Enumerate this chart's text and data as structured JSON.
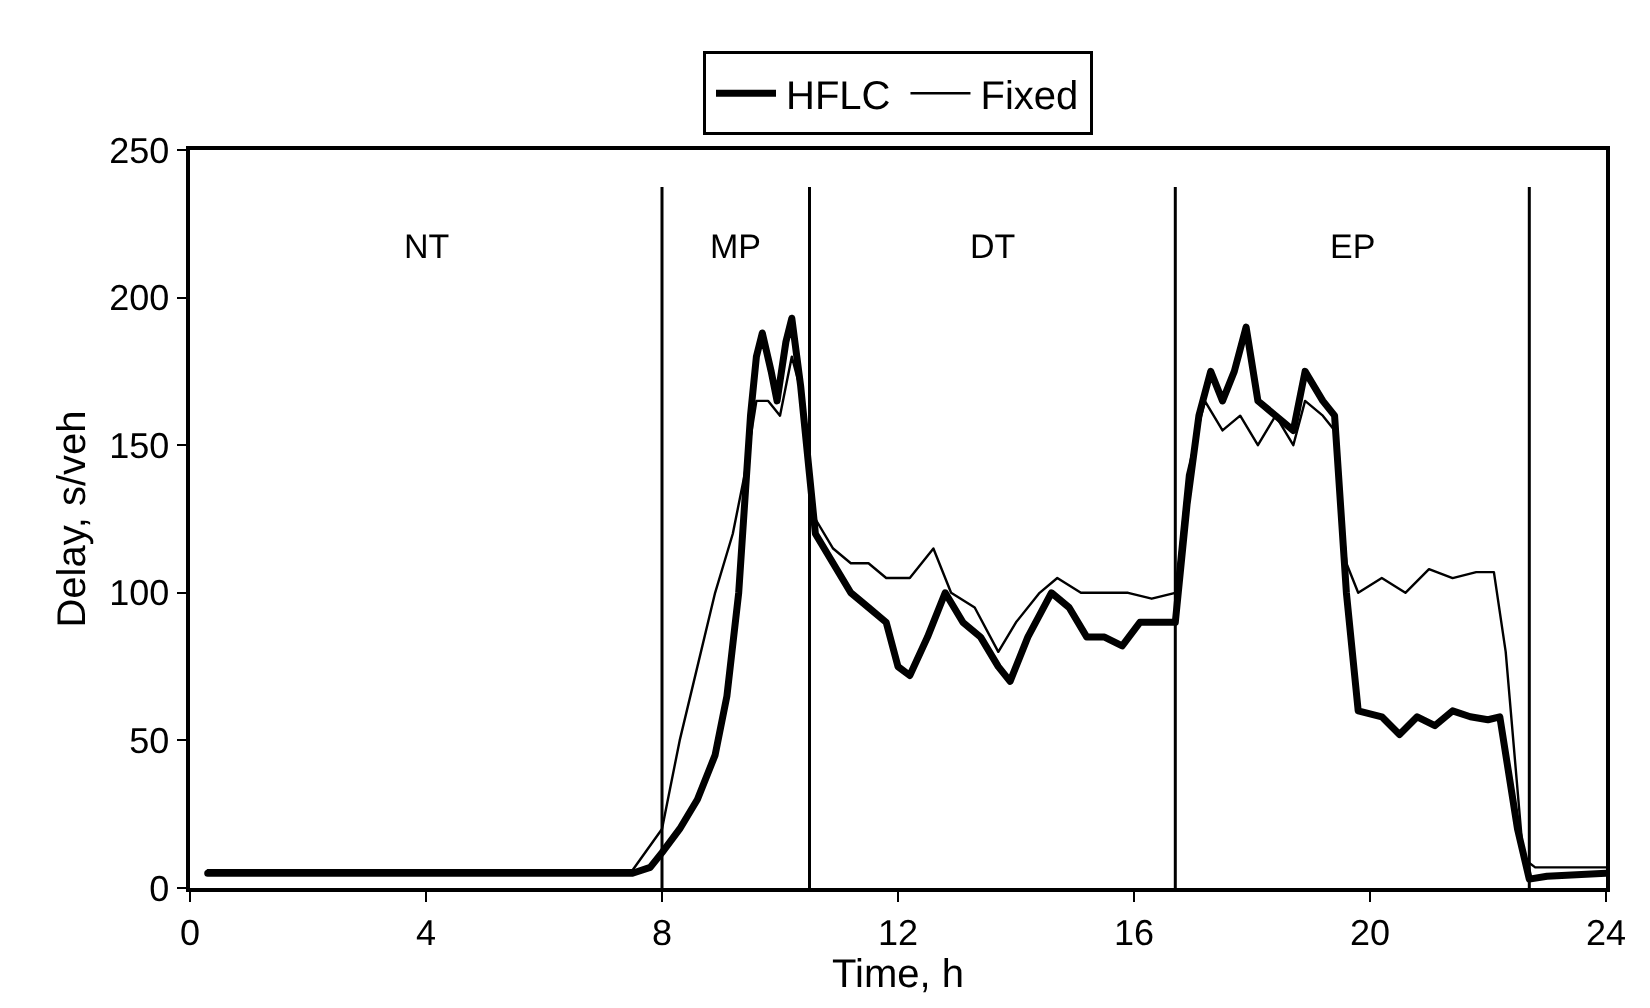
{
  "chart_data": {
    "type": "line",
    "xlabel": "Time, h",
    "ylabel": "Delay, s/veh",
    "xlim": [
      0,
      24
    ],
    "xticks": [
      0,
      4,
      8,
      12,
      16,
      20,
      24
    ],
    "ylim": [
      0,
      250
    ],
    "yticks": [
      0,
      50,
      100,
      150,
      200,
      250
    ],
    "grid": false,
    "legend": "top",
    "marker": "none",
    "line_style": "solid",
    "series": [
      {
        "name": "HFLC",
        "color": "#000000",
        "x": [
          0.3,
          1,
          2,
          3,
          4,
          5,
          6,
          7,
          7.5,
          7.8,
          8,
          8.3,
          8.6,
          8.9,
          9.1,
          9.3,
          9.4,
          9.5,
          9.6,
          9.7,
          9.85,
          9.95,
          10.1,
          10.2,
          10.35,
          10.5,
          10.6,
          10.9,
          11.2,
          11.5,
          11.8,
          12.0,
          12.2,
          12.5,
          12.8,
          13.1,
          13.4,
          13.7,
          13.9,
          14.2,
          14.6,
          14.9,
          15.2,
          15.5,
          15.8,
          16.1,
          16.4,
          16.7,
          16.9,
          17.1,
          17.3,
          17.5,
          17.7,
          17.9,
          18.1,
          18.4,
          18.7,
          18.9,
          19.2,
          19.4,
          19.6,
          19.8,
          20.2,
          20.5,
          20.8,
          21.1,
          21.4,
          21.7,
          22.0,
          22.2,
          22.5,
          22.7,
          23,
          24
        ],
        "values": [
          5,
          5,
          5,
          5,
          5,
          5,
          5,
          5,
          5,
          7,
          12,
          20,
          30,
          45,
          65,
          100,
          130,
          160,
          180,
          188,
          175,
          165,
          185,
          193,
          170,
          140,
          120,
          110,
          100,
          95,
          90,
          75,
          72,
          85,
          100,
          90,
          85,
          75,
          70,
          85,
          100,
          95,
          85,
          85,
          82,
          90,
          90,
          90,
          130,
          160,
          175,
          165,
          175,
          190,
          165,
          160,
          155,
          175,
          165,
          160,
          100,
          60,
          58,
          52,
          58,
          55,
          60,
          58,
          57,
          58,
          20,
          3,
          4,
          5
        ]
      },
      {
        "name": "Fixed",
        "color": "#000000",
        "x": [
          0.3,
          1,
          2,
          3,
          4,
          5,
          6,
          7,
          7.5,
          8.0,
          8.3,
          8.6,
          8.9,
          9.2,
          9.4,
          9.6,
          9.8,
          10.0,
          10.2,
          10.4,
          10.6,
          10.9,
          11.2,
          11.5,
          11.8,
          12.2,
          12.6,
          12.9,
          13.3,
          13.7,
          14.0,
          14.4,
          14.7,
          15.1,
          15.5,
          15.9,
          16.3,
          16.7,
          16.9,
          17.2,
          17.5,
          17.8,
          18.1,
          18.4,
          18.7,
          18.9,
          19.2,
          19.4,
          19.6,
          19.8,
          20.2,
          20.6,
          21.0,
          21.4,
          21.8,
          22.1,
          22.3,
          22.6,
          22.8,
          24
        ],
        "values": [
          6,
          6,
          6,
          6,
          6,
          6,
          6,
          6,
          6,
          20,
          50,
          75,
          100,
          120,
          140,
          165,
          165,
          160,
          180,
          165,
          125,
          115,
          110,
          110,
          105,
          105,
          115,
          100,
          95,
          80,
          90,
          100,
          105,
          100,
          100,
          100,
          98,
          100,
          140,
          165,
          155,
          160,
          150,
          160,
          150,
          165,
          160,
          155,
          110,
          100,
          105,
          100,
          108,
          105,
          107,
          107,
          80,
          10,
          7,
          7
        ]
      }
    ],
    "ref_lines": [
      {
        "axis": "x",
        "value": 8,
        "color": "#000000"
      },
      {
        "axis": "x",
        "value": 10.5,
        "color": "#000000"
      },
      {
        "axis": "x",
        "value": 16.7,
        "color": "#000000"
      },
      {
        "axis": "x",
        "value": 22.7,
        "color": "#000000"
      }
    ],
    "annotations": [
      "NT",
      "MP",
      "DT",
      "EP"
    ]
  }
}
